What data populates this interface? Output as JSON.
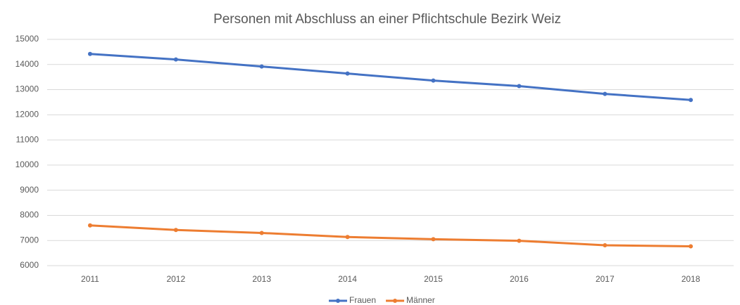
{
  "chart_data": {
    "type": "line",
    "title": "Personen mit Abschluss an einer Pflichtschule Bezirk Weiz",
    "categories": [
      "2011",
      "2012",
      "2013",
      "2014",
      "2015",
      "2016",
      "2017",
      "2018"
    ],
    "series": [
      {
        "name": "Frauen",
        "color": "#4472c4",
        "values": [
          14420,
          14200,
          13920,
          13640,
          13360,
          13140,
          12830,
          12590
        ]
      },
      {
        "name": "Männer",
        "color": "#ed7d31",
        "values": [
          7600,
          7420,
          7300,
          7140,
          7050,
          6990,
          6810,
          6770
        ]
      }
    ],
    "ylim": [
      6000,
      15000
    ],
    "yticks": [
      6000,
      7000,
      8000,
      9000,
      10000,
      11000,
      12000,
      13000,
      14000,
      15000
    ],
    "grid": true,
    "legend": "bottom"
  }
}
